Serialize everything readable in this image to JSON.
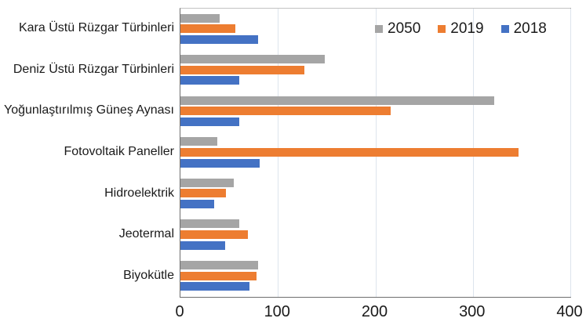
{
  "chart_data": {
    "type": "bar",
    "orientation": "horizontal",
    "title": "",
    "xlabel": "",
    "ylabel": "",
    "categories": [
      "Kara Üstü Rüzgar Türbinleri",
      "Deniz Üstü Rüzgar Türbinleri",
      "Yoğunlaştırılmış Güneş Aynası",
      "Fotovoltaik Paneller",
      "Hidroelektrik",
      "Jeotermal",
      "Biyokütle"
    ],
    "series": [
      {
        "name": "2050",
        "color": "#a5a5a5",
        "values": [
          40,
          148,
          322,
          38,
          55,
          60,
          80
        ]
      },
      {
        "name": "2019",
        "color": "#ed7d31",
        "values": [
          56,
          127,
          216,
          347,
          47,
          69,
          78
        ]
      },
      {
        "name": "2018",
        "color": "#4472c4",
        "values": [
          80,
          60,
          60,
          81,
          35,
          46,
          71
        ]
      }
    ],
    "series_order_per_group_top_to_bottom": [
      "2050",
      "2019",
      "2018"
    ],
    "x_axis": {
      "min": 0,
      "max": 400,
      "ticks": [
        0,
        100,
        200,
        300,
        400
      ]
    },
    "grid": true,
    "legend_position": "top-right-inside"
  },
  "colors": {
    "background": "#ffffff",
    "gridline": "#dde4ed",
    "axis_line": "#6e6e6e",
    "plot_border": "#8c8c8c",
    "text": "#1a1a1a"
  }
}
